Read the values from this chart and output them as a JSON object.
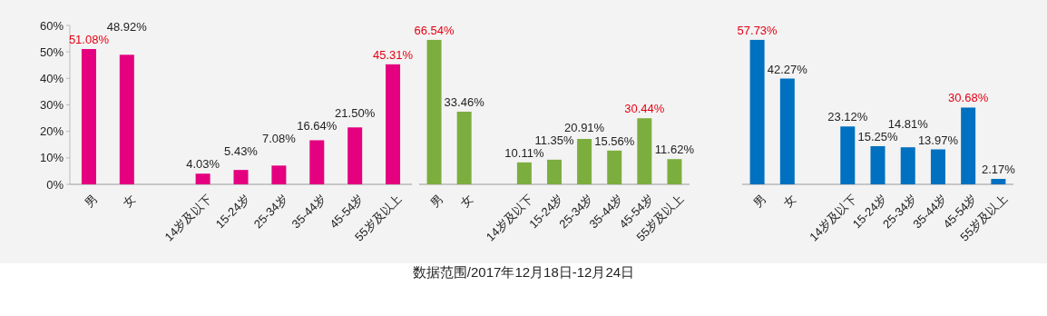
{
  "chart_data": [
    {
      "type": "bar",
      "categories": [
        "男",
        "女",
        null,
        "14岁及以下",
        "15-24岁",
        "25-34岁",
        "35-44岁",
        "45-54岁",
        "55岁及以上"
      ],
      "series": [
        {
          "color": "#e4007f",
          "values": [
            51.08,
            48.92,
            null,
            4.03,
            5.43,
            7.08,
            16.64,
            21.5,
            45.31
          ],
          "value_labels": [
            "51.08%",
            "48.92%",
            null,
            "4.03%",
            "5.43%",
            "7.08%",
            "16.64%",
            "21.50%",
            "45.31%"
          ]
        }
      ],
      "ylim": [
        0,
        60
      ],
      "yticks": [
        {
          "value": 0,
          "label": "0%"
        },
        {
          "value": 10,
          "label": "10%"
        },
        {
          "value": 20,
          "label": "20%"
        },
        {
          "value": 30,
          "label": "30%"
        },
        {
          "value": 40,
          "label": "40%"
        },
        {
          "value": 50,
          "label": "50%"
        },
        {
          "value": 60,
          "label": "60%"
        }
      ]
    },
    {
      "type": "bar",
      "categories": [
        "男",
        "女",
        null,
        "14岁及以下",
        "15-24岁",
        "25-34岁",
        "35-44岁",
        "45-54岁",
        "55岁及以上"
      ],
      "series": [
        {
          "color": "#7cae3f",
          "values": [
            66.54,
            33.46,
            null,
            10.11,
            11.35,
            20.91,
            15.56,
            30.44,
            11.62
          ],
          "value_labels": [
            "66.54%",
            "33.46%",
            null,
            "10.11%",
            "11.35%",
            "20.91%",
            "15.56%",
            "30.44%",
            "11.62%"
          ]
        }
      ],
      "tick_labels": "x",
      "annotations": [
        "数据范围/2017年12月18日-12月24日"
      ]
    },
    {
      "type": "bar",
      "categories": [
        "男",
        "女",
        null,
        "14岁及以下",
        "15-24岁",
        "25-34岁",
        "35-44岁",
        "45-54岁",
        "55岁及以上"
      ],
      "series": [
        {
          "color": "#0070c0",
          "values": [
            57.73,
            42.27,
            null,
            23.12,
            15.25,
            14.81,
            13.97,
            30.68,
            2.17
          ],
          "value_labels": [
            "57.73%",
            "42.27%",
            null,
            "23.12%",
            "15.25%",
            "14.81%",
            "13.97%",
            "30.68%",
            "2.17%"
          ]
        }
      ],
      "tick_labels": "x"
    }
  ]
}
